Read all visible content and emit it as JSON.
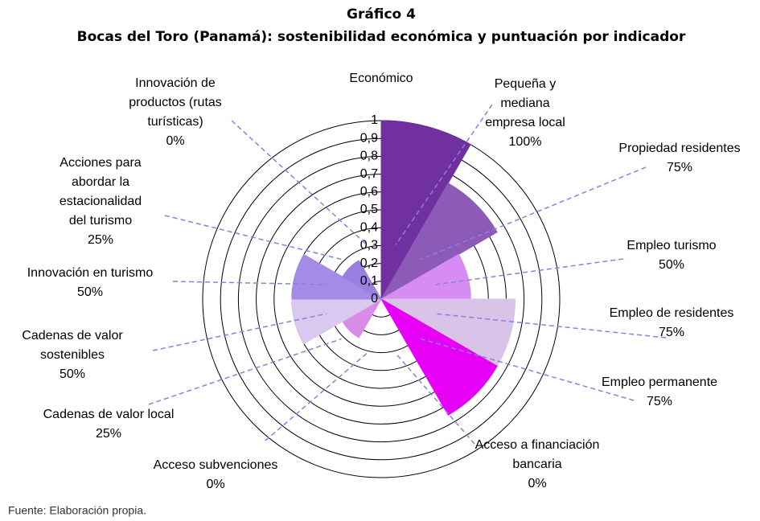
{
  "chart_data": {
    "type": "polar_area",
    "title": "Gráfico 4",
    "subtitle": "Bocas del Toro (Panamá): sostenibilidad económica y puntuación por indicador",
    "axis_label": "Económico",
    "source": "Fuente: Elaboración propia.",
    "categories": [
      "Pequeña y\nmediana\nempresa local",
      "Propiedad residentes",
      "Empleo turismo",
      "Empleo de residentes",
      "Empleo permanente",
      "Acceso a financiación\nbancaria",
      "Acceso subvenciones",
      "Cadenas de valor local",
      "Cadenas de valor\nsostenibles",
      "Innovación en turismo",
      "Acciones para\nabordar la\nestacionalidad\ndel turismo",
      "Innovación de\nproductos (rutas\nturísticas)"
    ],
    "values": [
      1,
      0.75,
      0.5,
      0.75,
      0.75,
      0,
      0,
      0.25,
      0.5,
      0.5,
      0.25,
      0
    ],
    "value_labels": [
      "100%",
      "75%",
      "50%",
      "75%",
      "75%",
      "0%",
      "0%",
      "25%",
      "50%",
      "50%",
      "25%",
      "0%"
    ],
    "colors": [
      "#7030a0",
      "#8d5ab8",
      "#d68bf5",
      "#d9c3e8",
      "#e600f5",
      "#cccccc",
      "#cccccc",
      "#d98be8",
      "#d9c8f0",
      "#a48be8",
      "#9a7fe0",
      "#cccccc"
    ],
    "rlim": [
      0,
      1
    ],
    "rticks": [
      0,
      {
        "value": 0.1,
        "label": "0,1"
      },
      {
        "value": 0.2,
        "label": "0,2"
      },
      {
        "value": 0.3,
        "label": "0,3"
      },
      {
        "value": 0.4,
        "label": "0,4"
      },
      {
        "value": 0.5,
        "label": "0,5"
      },
      {
        "value": 0.6,
        "label": "0,6"
      },
      {
        "value": 0.7,
        "label": "0,7"
      },
      {
        "value": 0.8,
        "label": "0,8"
      },
      {
        "value": 0.9,
        "label": "0,9"
      },
      1
    ]
  }
}
